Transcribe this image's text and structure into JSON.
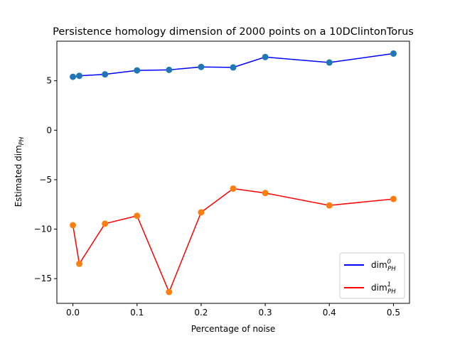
{
  "chart_data": {
    "type": "line",
    "title": "Persistence homology dimension of 2000 points on a 10DClintonTorus",
    "xlabel": "Percentage of noise",
    "ylabel": "Estimated dim",
    "ylabel_subscript": "PH",
    "xlim": [
      -0.025,
      0.525
    ],
    "ylim": [
      -17.5,
      9.0
    ],
    "xticks": [
      0.0,
      0.1,
      0.2,
      0.3,
      0.4,
      0.5
    ],
    "xtick_labels": [
      "0.0",
      "0.1",
      "0.2",
      "0.3",
      "0.4",
      "0.5"
    ],
    "yticks": [
      5,
      0,
      -5,
      -10,
      -15
    ],
    "ytick_labels": [
      "5",
      "0",
      "−5",
      "−10",
      "−15"
    ],
    "x": [
      0.0,
      0.01,
      0.05,
      0.1,
      0.15,
      0.2,
      0.25,
      0.3,
      0.4,
      0.5
    ],
    "series": [
      {
        "name": "dim",
        "sub": "PH",
        "sup": "0",
        "line_color": "#0000ff",
        "marker_color": "#1f77b4",
        "values": [
          5.4,
          5.5,
          5.65,
          6.05,
          6.1,
          6.4,
          6.35,
          7.4,
          6.85,
          7.75
        ]
      },
      {
        "name": "dim",
        "sub": "PH",
        "sup": "1",
        "line_color": "#ff0000",
        "marker_color": "#ff7f0e",
        "values": [
          -9.6,
          -13.5,
          -9.45,
          -8.65,
          -16.35,
          -8.3,
          -5.9,
          -6.35,
          -7.6,
          -6.95
        ]
      }
    ],
    "legend_position": "lower right",
    "grid": false
  }
}
